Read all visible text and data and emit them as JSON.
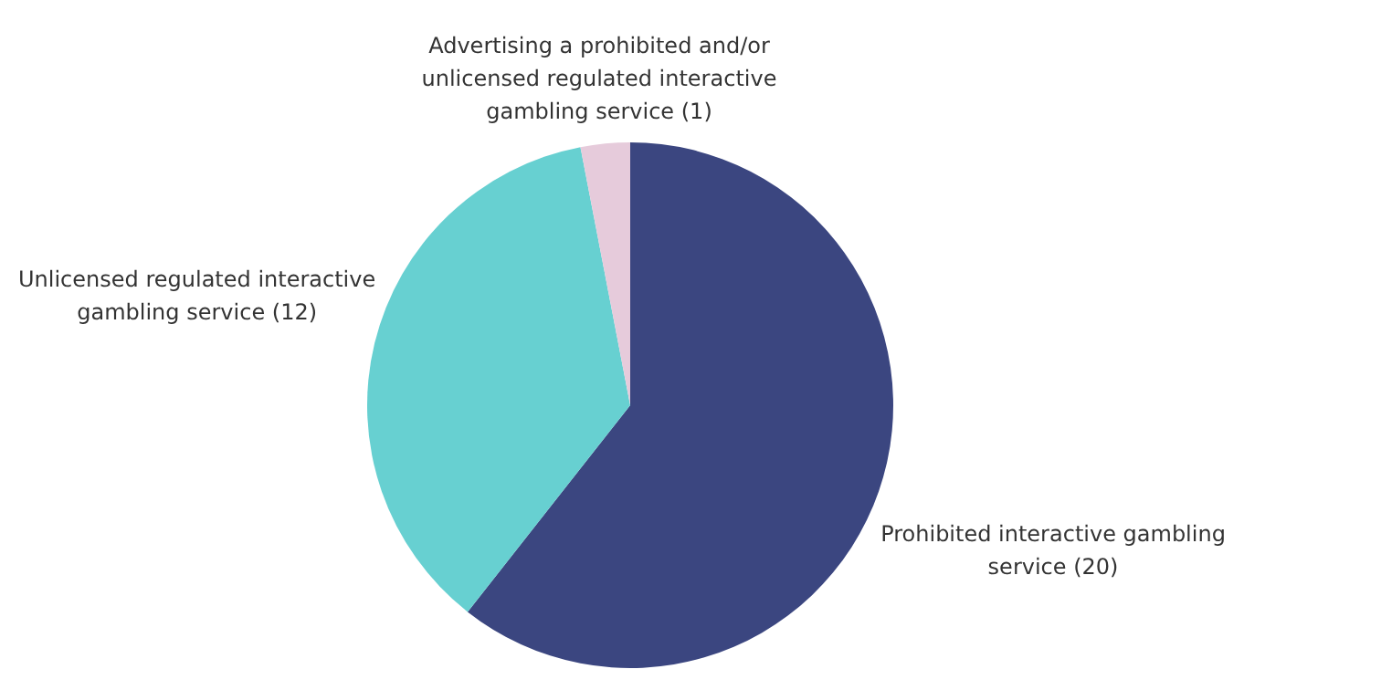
{
  "chart_data": {
    "type": "pie",
    "categories": [
      "Prohibited interactive gambling service",
      "Unlicensed regulated interactive gambling service",
      "Advertising a prohibited and/or unlicensed regulated interactive gambling service"
    ],
    "values": [
      20,
      12,
      1
    ],
    "value_labels": [
      "(20)",
      "(12)",
      "(1)"
    ],
    "colors": [
      "#3b4680",
      "#67d0d1",
      "#e6cbdb"
    ],
    "legend": false
  }
}
